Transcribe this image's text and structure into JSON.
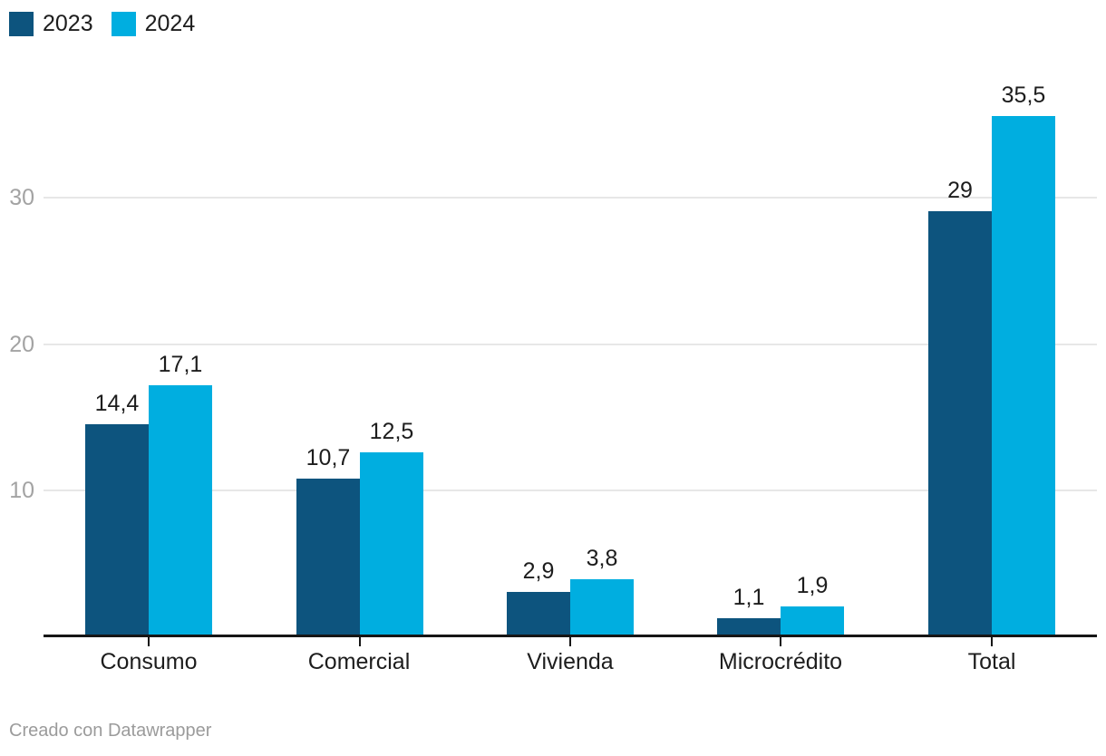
{
  "footer": {
    "credit": "Creado con Datawrapper"
  },
  "colors": {
    "series_2023": "#0d547e",
    "series_2024": "#00aee0",
    "axis_line": "#161616",
    "gridline": "#e7e7e7",
    "tick_text": "#a3a3a3",
    "label_text": "#1d1d1d",
    "footer_text": "#9b9b9b"
  },
  "chart_data": {
    "type": "bar",
    "categories": [
      "Consumo",
      "Comercial",
      "Vivienda",
      "Microcrédito",
      "Total"
    ],
    "series": [
      {
        "name": "2023",
        "color": "#0d547e",
        "values": [
          14.4,
          10.7,
          2.9,
          1.1,
          29
        ],
        "labels": [
          "14,4",
          "10,7",
          "2,9",
          "1,1",
          "29"
        ]
      },
      {
        "name": "2024",
        "color": "#00aee0",
        "values": [
          17.1,
          12.5,
          3.8,
          1.9,
          35.5
        ],
        "labels": [
          "17,1",
          "12,5",
          "3,8",
          "1,9",
          "35,5"
        ]
      }
    ],
    "title": "",
    "xlabel": "",
    "ylabel": "",
    "y_axis": {
      "ticks": [
        10,
        20,
        30
      ],
      "tick_labels": [
        "10",
        "20",
        "30"
      ],
      "ylim": [
        0,
        36.2
      ],
      "grid": true
    },
    "legend_position": "top-left",
    "value_labels_shown": true,
    "decimal_separator": ","
  }
}
